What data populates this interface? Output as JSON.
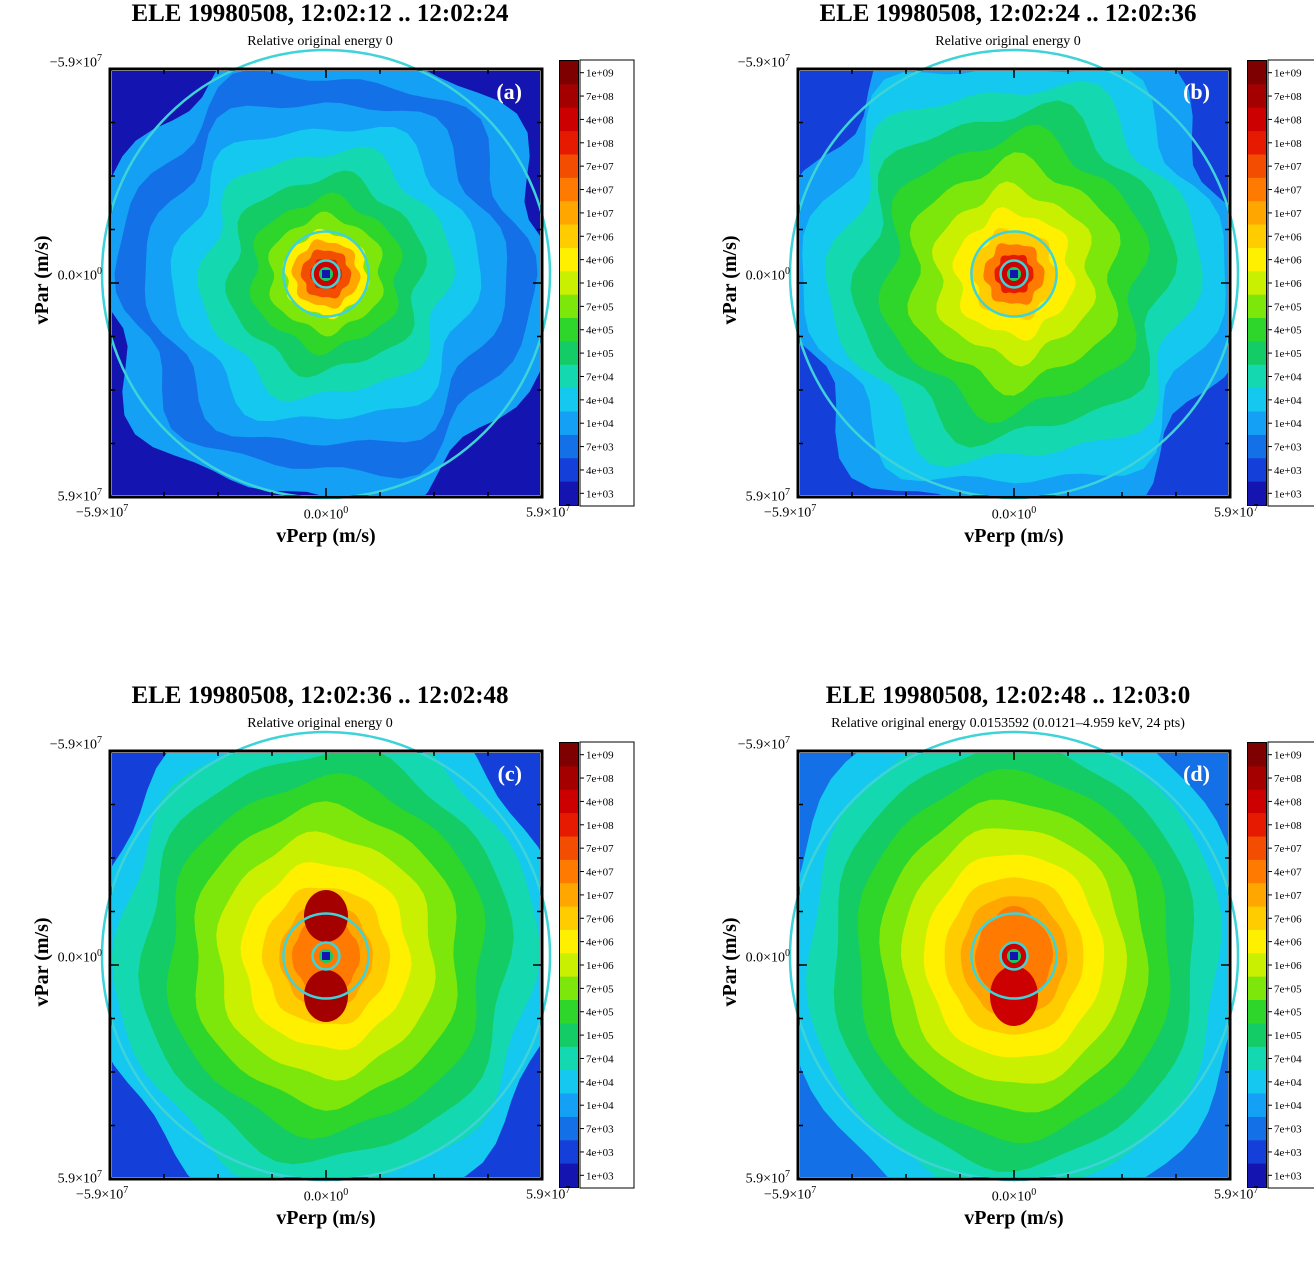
{
  "colorbar": {
    "labels": [
      "1e+09",
      "7e+08",
      "4e+08",
      "1e+08",
      "7e+07",
      "4e+07",
      "1e+07",
      "7e+06",
      "4e+06",
      "1e+06",
      "7e+05",
      "4e+05",
      "1e+05",
      "7e+04",
      "4e+04",
      "1e+04",
      "7e+03",
      "4e+03",
      "1e+03"
    ],
    "colors": [
      "#7f0000",
      "#a50000",
      "#cc0000",
      "#e51a00",
      "#f24d00",
      "#ff7a00",
      "#ffa600",
      "#ffcc00",
      "#fff000",
      "#c8f000",
      "#7de60a",
      "#2ed52a",
      "#14cc66",
      "#14d9b0",
      "#14c8f0",
      "#14a0f5",
      "#1470e6",
      "#1440d9",
      "#1414b0"
    ]
  },
  "chart_data": [
    {
      "type": "heatmap",
      "panel_label": "(a)",
      "title": "ELE 19980508, 12:02:12 .. 12:02:24",
      "subtitle": "Relative original energy 0",
      "xlabel": "vPerp (m/s)",
      "ylabel": "vPar (m/s)",
      "xlim": [
        -59000000,
        59000000
      ],
      "ylim": [
        -59000000,
        59000000
      ],
      "x_ticks": [
        "−5.9×10",
        "0.0×10",
        "5.9×10"
      ],
      "x_tick_exp": [
        "7",
        "0",
        "7"
      ],
      "y_ticks": [
        "−5.9×10",
        "0.0×10",
        "5.9×10"
      ],
      "y_tick_exp": [
        "7",
        "0",
        "7"
      ],
      "circle_radii_fraction": [
        0.06,
        0.19,
        1.0
      ],
      "pattern": "square-core"
    },
    {
      "type": "heatmap",
      "panel_label": "(b)",
      "title": "ELE 19980508, 12:02:24 .. 12:02:36",
      "subtitle": "Relative original energy 0",
      "xlabel": "vPerp (m/s)",
      "ylabel": "vPar (m/s)",
      "xlim": [
        -59000000,
        59000000
      ],
      "ylim": [
        -59000000,
        59000000
      ],
      "x_ticks": [
        "−5.9×10",
        "0.0×10",
        "5.9×10"
      ],
      "x_tick_exp": [
        "7",
        "0",
        "7"
      ],
      "y_ticks": [
        "−5.9×10",
        "0.0×10",
        "5.9×10"
      ],
      "y_tick_exp": [
        "7",
        "0",
        "7"
      ],
      "circle_radii_fraction": [
        0.06,
        0.19,
        1.0
      ],
      "pattern": "broad-core"
    },
    {
      "type": "heatmap",
      "panel_label": "(c)",
      "title": "ELE 19980508, 12:02:36 .. 12:02:48",
      "subtitle": "Relative original energy 0",
      "xlabel": "vPerp (m/s)",
      "ylabel": "vPar (m/s)",
      "xlim": [
        -59000000,
        59000000
      ],
      "ylim": [
        -59000000,
        59000000
      ],
      "x_ticks": [
        "−5.9×10",
        "0.0×10",
        "5.9×10"
      ],
      "x_tick_exp": [
        "7",
        "0",
        "7"
      ],
      "y_ticks": [
        "−5.9×10",
        "0.0×10",
        "5.9×10"
      ],
      "y_tick_exp": [
        "7",
        "0",
        "7"
      ],
      "circle_radii_fraction": [
        0.06,
        0.19,
        1.0
      ],
      "pattern": "vertical-lobes"
    },
    {
      "type": "heatmap",
      "panel_label": "(d)",
      "title": "ELE 19980508, 12:02:48 .. 12:03:0",
      "subtitle": "Relative original energy 0.0153592 (0.0121–4.959 keV, 24 pts)",
      "xlabel": "vPerp (m/s)",
      "ylabel": "vPar (m/s)",
      "xlim": [
        -59000000,
        59000000
      ],
      "ylim": [
        -59000000,
        59000000
      ],
      "x_ticks": [
        "−5.9×10",
        "0.0×10",
        "5.9×10"
      ],
      "x_tick_exp": [
        "7",
        "0",
        "7"
      ],
      "y_ticks": [
        "−5.9×10",
        "0.0×10",
        "5.9×10"
      ],
      "y_tick_exp": [
        "7",
        "0",
        "7"
      ],
      "circle_radii_fraction": [
        0.06,
        0.19,
        1.0
      ],
      "pattern": "wide-warm"
    }
  ]
}
